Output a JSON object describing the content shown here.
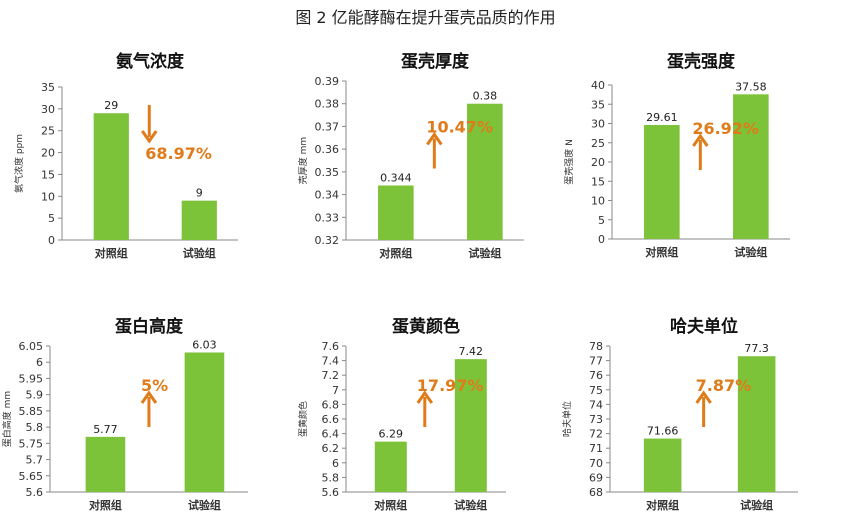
{
  "figure_title": "图 2 亿能酵酶在提升蛋壳品质的作用",
  "colors": {
    "bar": "#7cc33a",
    "arrow": "#e07b1a",
    "axis": "#888888"
  },
  "chart_data": [
    {
      "type": "bar",
      "title": "氨气浓度",
      "ylabel": "氨气浓度 ppm",
      "categories": [
        "对照组",
        "试验组"
      ],
      "values": [
        29,
        9
      ],
      "data_labels": [
        "29",
        "9"
      ],
      "ylim": [
        0,
        35
      ],
      "yticks": [
        0,
        5,
        10,
        15,
        20,
        25,
        30,
        35
      ],
      "tick_labels": [
        "0",
        "5",
        "10",
        "15",
        "20",
        "25",
        "30",
        "35"
      ],
      "annotation": {
        "text": "68.97%",
        "direction": "down"
      }
    },
    {
      "type": "bar",
      "title": "蛋壳厚度",
      "ylabel": "壳厚度 mm",
      "categories": [
        "对照组",
        "试验组"
      ],
      "values": [
        0.344,
        0.38
      ],
      "data_labels": [
        "0.344",
        "0.38"
      ],
      "ylim": [
        0.32,
        0.39
      ],
      "yticks": [
        0.32,
        0.33,
        0.34,
        0.35,
        0.36,
        0.37,
        0.38,
        0.39
      ],
      "tick_labels": [
        "0.32",
        "0.33",
        "0.34",
        "0.35",
        "0.36",
        "0.37",
        "0.38",
        "0.39"
      ],
      "annotation": {
        "text": "10.47%",
        "direction": "up"
      }
    },
    {
      "type": "bar",
      "title": "蛋壳强度",
      "ylabel": "蛋壳强度 N",
      "categories": [
        "对照组",
        "试验组"
      ],
      "values": [
        29.61,
        37.58
      ],
      "data_labels": [
        "29.61",
        "37.58"
      ],
      "ylim": [
        0,
        40
      ],
      "yticks": [
        0,
        5,
        10,
        15,
        20,
        25,
        30,
        35,
        40
      ],
      "tick_labels": [
        "0",
        "5",
        "10",
        "15",
        "20",
        "25",
        "30",
        "35",
        "40"
      ],
      "annotation": {
        "text": "26.92%",
        "direction": "up"
      }
    },
    {
      "type": "bar",
      "title": "蛋白高度",
      "ylabel": "蛋白高度 mm",
      "categories": [
        "对照组",
        "试验组"
      ],
      "values": [
        5.77,
        6.03
      ],
      "data_labels": [
        "5.77",
        "6.03"
      ],
      "ylim": [
        5.6,
        6.05
      ],
      "yticks": [
        5.6,
        5.65,
        5.7,
        5.75,
        5.8,
        5.85,
        5.9,
        5.95,
        6,
        6.05
      ],
      "tick_labels": [
        "5.6",
        "5.65",
        "5.7",
        "5.75",
        "5.8",
        "5.85",
        "5.9",
        "5.95",
        "6",
        "6.05"
      ],
      "annotation": {
        "text": "5%",
        "direction": "up"
      }
    },
    {
      "type": "bar",
      "title": "蛋黄颜色",
      "ylabel": "蛋黄颜色",
      "categories": [
        "对照组",
        "试验组"
      ],
      "values": [
        6.29,
        7.42
      ],
      "data_labels": [
        "6.29",
        "7.42"
      ],
      "ylim": [
        5.6,
        7.6
      ],
      "yticks": [
        5.6,
        5.8,
        6,
        6.2,
        6.4,
        6.6,
        6.8,
        7,
        7.2,
        7.4,
        7.6
      ],
      "tick_labels": [
        "5.6",
        "5.8",
        "6",
        "6.2",
        "6.4",
        "6.6",
        "6.8",
        "7",
        "7.2",
        "7.4",
        "7.6"
      ],
      "annotation": {
        "text": "17.97%",
        "direction": "up"
      }
    },
    {
      "type": "bar",
      "title": "哈夫单位",
      "ylabel": "哈夫单位",
      "categories": [
        "对照组",
        "试验组"
      ],
      "values": [
        71.66,
        77.3
      ],
      "data_labels": [
        "71.66",
        "77.3"
      ],
      "ylim": [
        68,
        78
      ],
      "yticks": [
        68,
        69,
        70,
        71,
        72,
        73,
        74,
        75,
        76,
        77,
        78
      ],
      "tick_labels": [
        "68",
        "69",
        "70",
        "71",
        "72",
        "73",
        "74",
        "75",
        "76",
        "77",
        "78"
      ],
      "annotation": {
        "text": "7.87%",
        "direction": "up"
      }
    }
  ]
}
